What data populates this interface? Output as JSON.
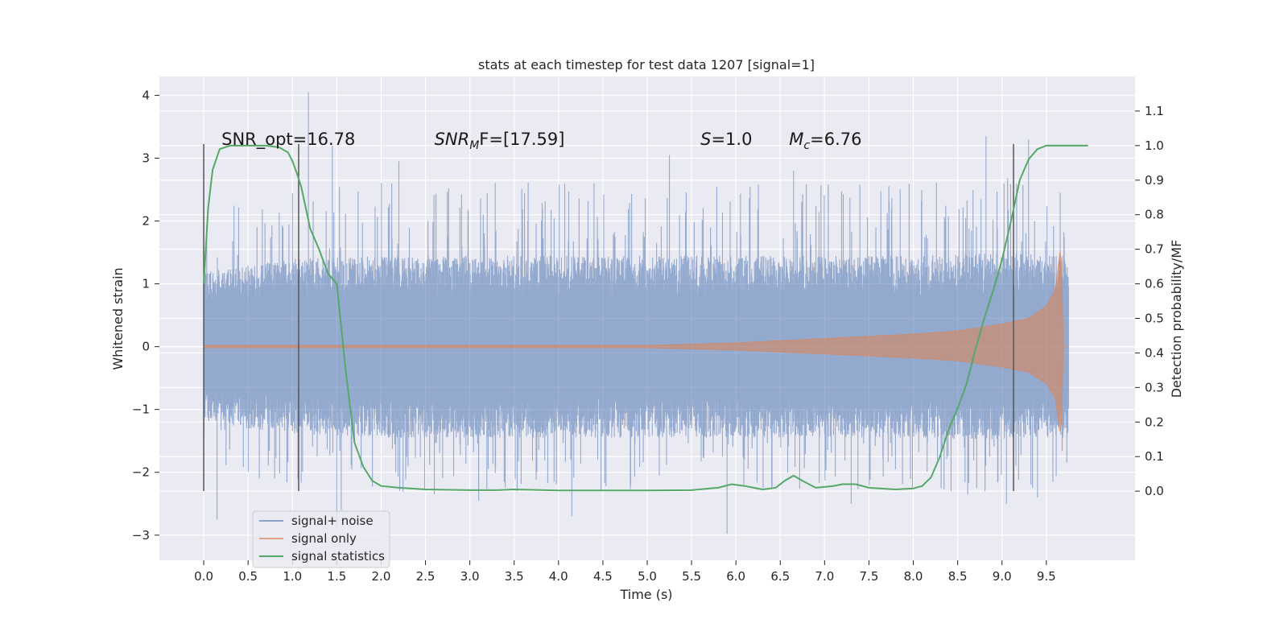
{
  "chart_data": {
    "type": "line",
    "title": "stats at each timestep for test data 1207 [signal=1]",
    "xlabel": "Time (s)",
    "ylabel": "Whitened strain",
    "y2label": "Detection probability/MF",
    "xlim": [
      -0.5,
      10.5
    ],
    "ylim": [
      -3.4,
      4.3
    ],
    "y2lim": [
      -0.2,
      1.2
    ],
    "xticks": [
      "0.0",
      "0.5",
      "1.0",
      "1.5",
      "2.0",
      "2.5",
      "3.0",
      "3.5",
      "4.0",
      "4.5",
      "5.0",
      "5.5",
      "6.0",
      "6.5",
      "7.0",
      "7.5",
      "8.0",
      "8.5",
      "9.0",
      "9.5"
    ],
    "yticks": [
      "4",
      "3",
      "2",
      "1",
      "0",
      "−1",
      "−2",
      "−3"
    ],
    "y2ticks": [
      "1.1",
      "1.0",
      "0.9",
      "0.8",
      "0.7",
      "0.6",
      "0.5",
      "0.4",
      "0.3",
      "0.2",
      "0.1",
      "0.0"
    ],
    "grid": true,
    "legend_position": "lower-left",
    "colors": {
      "background": "#EAEAF2",
      "noise": "#4C72B0",
      "signal": "#DD8452",
      "stats": "#55A868",
      "vlines": "#555555"
    },
    "annotations": [
      {
        "text": "SNR_opt=16.78"
      },
      {
        "prefix": "SNR",
        "sub": "M",
        "suffix": "F=[17.59]"
      },
      {
        "prefix": "S",
        "sub": "",
        "suffix": "=1.0"
      },
      {
        "prefix": "M",
        "sub": "c",
        "suffix": "=6.76"
      }
    ],
    "vertical_lines_x": [
      0.0,
      1.07,
      9.13
    ],
    "series": [
      {
        "name": "signal+ noise",
        "x_range": [
          0.0,
          9.75
        ],
        "envelope": [
          [
            0.0,
            1.2
          ],
          [
            1.0,
            1.4
          ],
          [
            2.0,
            1.45
          ],
          [
            3.0,
            1.45
          ],
          [
            4.0,
            1.45
          ],
          [
            5.0,
            1.45
          ],
          [
            6.0,
            1.45
          ],
          [
            7.0,
            1.45
          ],
          [
            8.0,
            1.45
          ],
          [
            9.0,
            1.5
          ],
          [
            9.75,
            1.45
          ]
        ],
        "peaks": [
          [
            1.18,
            4.05
          ],
          [
            1.45,
            3.2
          ],
          [
            2.2,
            2.95
          ],
          [
            5.25,
            3.05
          ],
          [
            8.82,
            3.35
          ],
          [
            9.3,
            3.3
          ],
          [
            6.65,
            2.8
          ],
          [
            4.4,
            2.6
          ],
          [
            5.9,
            -2.98
          ],
          [
            4.15,
            -2.7
          ],
          [
            1.55,
            -2.6
          ],
          [
            2.6,
            -2.35
          ],
          [
            3.1,
            -2.45
          ],
          [
            7.3,
            -2.5
          ],
          [
            9.05,
            -2.5
          ],
          [
            1.5,
            -2.9
          ],
          [
            0.15,
            -2.75
          ],
          [
            9.4,
            -2.4
          ]
        ]
      },
      {
        "name": "signal only",
        "amplitude_x": [
          0.0,
          5.0,
          6.0,
          7.0,
          8.0,
          8.5,
          9.0,
          9.3,
          9.5,
          9.6,
          9.67,
          9.68,
          9.75
        ],
        "amplitude_y": [
          0.02,
          0.02,
          0.06,
          0.13,
          0.2,
          0.25,
          0.36,
          0.45,
          0.65,
          0.9,
          1.7,
          0.0,
          0.0
        ]
      },
      {
        "name": "signal statistics",
        "x": [
          0.0,
          0.05,
          0.1,
          0.18,
          0.3,
          0.5,
          0.7,
          0.85,
          0.95,
          1.0,
          1.05,
          1.1,
          1.15,
          1.2,
          1.3,
          1.4,
          1.5,
          1.6,
          1.7,
          1.8,
          1.9,
          2.0,
          2.2,
          2.5,
          3.0,
          3.3,
          3.5,
          4.0,
          4.5,
          5.0,
          5.5,
          5.8,
          5.95,
          6.1,
          6.3,
          6.45,
          6.55,
          6.65,
          6.75,
          6.9,
          7.1,
          7.2,
          7.35,
          7.5,
          7.8,
          8.0,
          8.1,
          8.2,
          8.3,
          8.4,
          8.5,
          8.6,
          8.7,
          8.8,
          8.9,
          9.0,
          9.1,
          9.2,
          9.3,
          9.4,
          9.5,
          9.6,
          9.7,
          9.8,
          9.9,
          9.97
        ],
        "y": [
          0.6,
          0.82,
          0.93,
          0.99,
          1.0,
          1.0,
          1.0,
          0.995,
          0.98,
          0.955,
          0.92,
          0.88,
          0.82,
          0.76,
          0.7,
          0.63,
          0.6,
          0.35,
          0.14,
          0.07,
          0.03,
          0.015,
          0.01,
          0.005,
          0.003,
          0.003,
          0.005,
          0.002,
          0.002,
          0.002,
          0.003,
          0.01,
          0.02,
          0.015,
          0.005,
          0.01,
          0.03,
          0.045,
          0.03,
          0.01,
          0.015,
          0.02,
          0.02,
          0.01,
          0.005,
          0.008,
          0.015,
          0.04,
          0.1,
          0.18,
          0.24,
          0.31,
          0.41,
          0.5,
          0.58,
          0.67,
          0.78,
          0.9,
          0.96,
          0.99,
          1.0,
          1.0,
          1.0,
          1.0,
          1.0,
          1.0
        ]
      }
    ]
  }
}
